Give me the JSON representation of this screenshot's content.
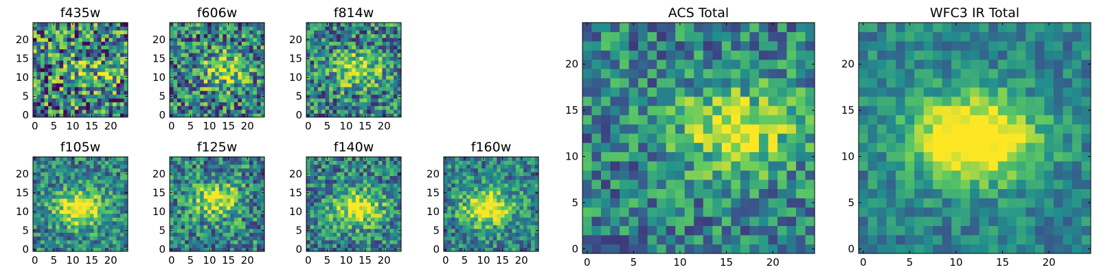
{
  "chart_data": [
    {
      "type": "heatmap",
      "title": "f435w",
      "grid_size": 25,
      "xticks": [
        0,
        5,
        10,
        15,
        20
      ],
      "yticks": [
        0,
        5,
        10,
        15,
        20
      ],
      "xlim": [
        -0.5,
        24.5
      ],
      "ylim": [
        -0.5,
        24.5
      ],
      "blob": {
        "x": 15,
        "y": 12,
        "strength": 0.25
      },
      "noise": 0.6,
      "seed": 11
    },
    {
      "type": "heatmap",
      "title": "f606w",
      "grid_size": 25,
      "xticks": [
        0,
        5,
        10,
        15,
        20
      ],
      "yticks": [
        0,
        5,
        10,
        15,
        20
      ],
      "xlim": [
        -0.5,
        24.5
      ],
      "ylim": [
        -0.5,
        24.5
      ],
      "blob": {
        "x": 14,
        "y": 12,
        "strength": 0.45
      },
      "noise": 0.5,
      "seed": 23
    },
    {
      "type": "heatmap",
      "title": "f814w",
      "grid_size": 25,
      "xticks": [
        0,
        5,
        10,
        15,
        20
      ],
      "yticks": [
        0,
        5,
        10,
        15,
        20
      ],
      "xlim": [
        -0.5,
        24.5
      ],
      "ylim": [
        -0.5,
        24.5
      ],
      "blob": {
        "x": 13,
        "y": 12,
        "strength": 0.5
      },
      "noise": 0.45,
      "seed": 37
    },
    {
      "type": "heatmap",
      "title": "f105w",
      "grid_size": 25,
      "xticks": [
        0,
        5,
        10,
        15,
        20
      ],
      "yticks": [
        0,
        5,
        10,
        15,
        20
      ],
      "xlim": [
        -0.5,
        24.5
      ],
      "ylim": [
        -0.5,
        24.5
      ],
      "blob": {
        "x": 12,
        "y": 11,
        "strength": 0.75
      },
      "noise": 0.35,
      "seed": 41
    },
    {
      "type": "heatmap",
      "title": "f125w",
      "grid_size": 25,
      "xticks": [
        0,
        5,
        10,
        15,
        20
      ],
      "yticks": [
        0,
        5,
        10,
        15,
        20
      ],
      "xlim": [
        -0.5,
        24.5
      ],
      "ylim": [
        -0.5,
        24.5
      ],
      "blob": {
        "x": 12,
        "y": 13,
        "strength": 0.55
      },
      "noise": 0.4,
      "seed": 53
    },
    {
      "type": "heatmap",
      "title": "f140w",
      "grid_size": 25,
      "xticks": [
        0,
        5,
        10,
        15,
        20
      ],
      "yticks": [
        0,
        5,
        10,
        15,
        20
      ],
      "xlim": [
        -0.5,
        24.5
      ],
      "ylim": [
        -0.5,
        24.5
      ],
      "blob": {
        "x": 13,
        "y": 11,
        "strength": 0.65
      },
      "noise": 0.38,
      "seed": 67
    },
    {
      "type": "heatmap",
      "title": "f160w",
      "grid_size": 25,
      "xticks": [
        0,
        5,
        10,
        15,
        20
      ],
      "yticks": [
        0,
        5,
        10,
        15,
        20
      ],
      "xlim": [
        -0.5,
        24.5
      ],
      "ylim": [
        -0.5,
        24.5
      ],
      "blob": {
        "x": 11,
        "y": 11,
        "strength": 0.75
      },
      "noise": 0.35,
      "seed": 79
    },
    {
      "type": "heatmap",
      "title": "ACS Total",
      "grid_size": 25,
      "xticks": [
        0,
        5,
        10,
        15,
        20
      ],
      "yticks": [
        0,
        5,
        10,
        15,
        20
      ],
      "xlim": [
        -0.5,
        24.5
      ],
      "ylim": [
        -0.5,
        24.5
      ],
      "blob": {
        "x": 16,
        "y": 13,
        "strength": 0.55
      },
      "noise": 0.35,
      "seed": 97
    },
    {
      "type": "heatmap",
      "title": "WFC3 IR Total",
      "grid_size": 25,
      "xticks": [
        0,
        5,
        10,
        15,
        20
      ],
      "yticks": [
        0,
        5,
        10,
        15,
        20
      ],
      "xlim": [
        -0.5,
        24.5
      ],
      "ylim": [
        -0.5,
        24.5
      ],
      "blob": {
        "x": 12,
        "y": 12,
        "strength": 0.9
      },
      "noise": 0.22,
      "seed": 131
    }
  ],
  "colormap": [
    "#440154",
    "#3b528b",
    "#21908d",
    "#5dc962",
    "#fde725"
  ]
}
